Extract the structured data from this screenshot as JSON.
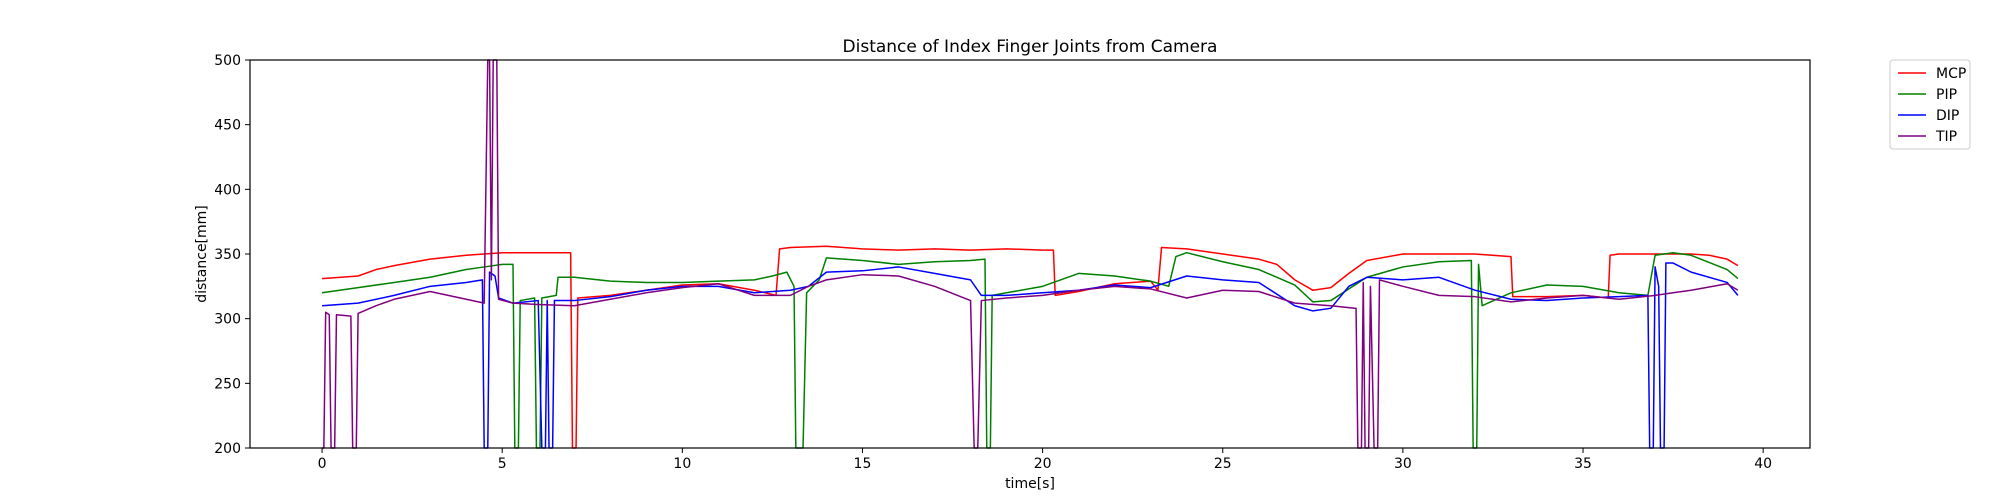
{
  "chart_data": {
    "type": "line",
    "title": "Distance of Index Finger Joints from Camera",
    "xlabel": "time[s]",
    "ylabel": "distance[mm]",
    "xlim": [
      -2,
      41.3
    ],
    "ylim": [
      200,
      500
    ],
    "xticks": [
      0,
      5,
      10,
      15,
      20,
      25,
      30,
      35,
      40
    ],
    "yticks": [
      200,
      250,
      300,
      350,
      400,
      450,
      500
    ],
    "grid": false,
    "legend_position": "outside-top-right",
    "series": [
      {
        "name": "MCP",
        "color": "#ff0000",
        "points": [
          [
            0,
            331
          ],
          [
            1,
            333
          ],
          [
            1.5,
            338
          ],
          [
            2,
            341
          ],
          [
            3,
            346
          ],
          [
            4,
            349
          ],
          [
            5,
            351
          ],
          [
            6,
            351
          ],
          [
            6.9,
            351
          ],
          [
            6.95,
            200
          ],
          [
            7.05,
            200
          ],
          [
            7.1,
            316
          ],
          [
            8,
            318
          ],
          [
            9,
            322
          ],
          [
            10,
            326
          ],
          [
            11,
            327
          ],
          [
            12,
            322
          ],
          [
            12.6,
            318
          ],
          [
            12.7,
            354
          ],
          [
            13,
            355
          ],
          [
            14,
            356
          ],
          [
            15,
            354
          ],
          [
            16,
            353
          ],
          [
            17,
            354
          ],
          [
            18,
            353
          ],
          [
            19,
            354
          ],
          [
            20,
            353
          ],
          [
            20.3,
            353
          ],
          [
            20.35,
            318
          ],
          [
            21,
            321
          ],
          [
            22,
            327
          ],
          [
            23,
            329
          ],
          [
            23.2,
            322
          ],
          [
            23.3,
            355
          ],
          [
            24,
            354
          ],
          [
            25,
            350
          ],
          [
            26,
            346
          ],
          [
            26.5,
            342
          ],
          [
            27,
            330
          ],
          [
            27.5,
            322
          ],
          [
            28,
            324
          ],
          [
            28.5,
            335
          ],
          [
            29,
            345
          ],
          [
            30,
            350
          ],
          [
            31,
            350
          ],
          [
            32,
            350
          ],
          [
            33,
            348
          ],
          [
            33.05,
            317
          ],
          [
            34,
            317
          ],
          [
            35,
            318
          ],
          [
            35.7,
            316
          ],
          [
            35.75,
            349
          ],
          [
            36,
            350
          ],
          [
            37,
            350
          ],
          [
            38,
            350
          ],
          [
            38.5,
            349
          ],
          [
            39,
            346
          ],
          [
            39.3,
            341
          ]
        ]
      },
      {
        "name": "PIP",
        "color": "#008000",
        "points": [
          [
            0,
            320
          ],
          [
            1,
            324
          ],
          [
            2,
            328
          ],
          [
            3,
            332
          ],
          [
            4,
            338
          ],
          [
            4.5,
            340
          ],
          [
            5,
            342
          ],
          [
            5.3,
            342
          ],
          [
            5.35,
            200
          ],
          [
            5.45,
            200
          ],
          [
            5.5,
            314
          ],
          [
            5.9,
            316
          ],
          [
            5.95,
            200
          ],
          [
            6.05,
            200
          ],
          [
            6.1,
            316
          ],
          [
            6.5,
            318
          ],
          [
            6.55,
            332
          ],
          [
            7,
            332
          ],
          [
            8,
            329
          ],
          [
            9,
            328
          ],
          [
            10,
            328
          ],
          [
            11,
            329
          ],
          [
            12,
            330
          ],
          [
            12.5,
            333
          ],
          [
            12.9,
            336
          ],
          [
            13.1,
            325
          ],
          [
            13.15,
            200
          ],
          [
            13.25,
            200
          ],
          [
            13.3,
            200
          ],
          [
            13.35,
            200
          ],
          [
            13.45,
            320
          ],
          [
            13.8,
            330
          ],
          [
            14,
            347
          ],
          [
            15,
            345
          ],
          [
            16,
            342
          ],
          [
            17,
            344
          ],
          [
            18,
            345
          ],
          [
            18.4,
            346
          ],
          [
            18.45,
            200
          ],
          [
            18.55,
            200
          ],
          [
            18.6,
            318
          ],
          [
            19,
            320
          ],
          [
            20,
            325
          ],
          [
            21,
            335
          ],
          [
            22,
            333
          ],
          [
            23,
            329
          ],
          [
            23.5,
            325
          ],
          [
            23.7,
            348
          ],
          [
            24,
            351
          ],
          [
            25,
            344
          ],
          [
            26,
            338
          ],
          [
            27,
            326
          ],
          [
            27.5,
            313
          ],
          [
            28,
            314
          ],
          [
            29,
            332
          ],
          [
            30,
            340
          ],
          [
            31,
            344
          ],
          [
            31.9,
            345
          ],
          [
            31.95,
            200
          ],
          [
            32.05,
            200
          ],
          [
            32.1,
            342
          ],
          [
            32.2,
            310
          ],
          [
            33,
            320
          ],
          [
            34,
            326
          ],
          [
            35,
            325
          ],
          [
            36,
            320
          ],
          [
            36.8,
            318
          ],
          [
            37,
            349
          ],
          [
            37.5,
            351
          ],
          [
            38,
            349
          ],
          [
            39,
            338
          ],
          [
            39.3,
            331
          ]
        ]
      },
      {
        "name": "DIP",
        "color": "#0000ff",
        "points": [
          [
            0,
            310
          ],
          [
            1,
            312
          ],
          [
            2,
            318
          ],
          [
            3,
            325
          ],
          [
            4,
            328
          ],
          [
            4.45,
            330
          ],
          [
            4.5,
            200
          ],
          [
            4.6,
            200
          ],
          [
            4.65,
            336
          ],
          [
            4.8,
            333
          ],
          [
            4.9,
            316
          ],
          [
            5.3,
            312
          ],
          [
            6,
            314
          ],
          [
            6.1,
            200
          ],
          [
            6.2,
            200
          ],
          [
            6.25,
            314
          ],
          [
            6.3,
            200
          ],
          [
            6.4,
            200
          ],
          [
            6.45,
            314
          ],
          [
            7,
            314
          ],
          [
            8,
            317
          ],
          [
            9,
            322
          ],
          [
            10,
            325
          ],
          [
            11,
            325
          ],
          [
            12,
            320
          ],
          [
            13,
            322
          ],
          [
            13.5,
            325
          ],
          [
            14,
            336
          ],
          [
            15,
            337
          ],
          [
            16,
            340
          ],
          [
            17,
            335
          ],
          [
            18,
            330
          ],
          [
            18.3,
            318
          ],
          [
            19,
            318
          ],
          [
            20,
            320
          ],
          [
            21,
            322
          ],
          [
            22,
            326
          ],
          [
            23,
            324
          ],
          [
            24,
            333
          ],
          [
            25,
            330
          ],
          [
            26,
            328
          ],
          [
            27,
            310
          ],
          [
            27.5,
            306
          ],
          [
            28,
            308
          ],
          [
            28.5,
            325
          ],
          [
            29,
            332
          ],
          [
            30,
            330
          ],
          [
            31,
            332
          ],
          [
            32,
            322
          ],
          [
            33,
            315
          ],
          [
            34,
            314
          ],
          [
            35,
            316
          ],
          [
            36,
            317
          ],
          [
            36.8,
            318
          ],
          [
            36.85,
            200
          ],
          [
            36.95,
            200
          ],
          [
            37,
            340
          ],
          [
            37.1,
            325
          ],
          [
            37.15,
            200
          ],
          [
            37.25,
            200
          ],
          [
            37.3,
            343
          ],
          [
            37.5,
            343
          ],
          [
            38,
            336
          ],
          [
            39,
            328
          ],
          [
            39.3,
            318
          ]
        ]
      },
      {
        "name": "TIP",
        "color": "#800080",
        "points": [
          [
            0,
            200
          ],
          [
            0.05,
            200
          ],
          [
            0.1,
            305
          ],
          [
            0.2,
            303
          ],
          [
            0.25,
            200
          ],
          [
            0.35,
            200
          ],
          [
            0.4,
            303
          ],
          [
            0.8,
            302
          ],
          [
            0.85,
            200
          ],
          [
            0.95,
            200
          ],
          [
            1,
            304
          ],
          [
            1.5,
            310
          ],
          [
            2,
            315
          ],
          [
            3,
            321
          ],
          [
            4,
            315
          ],
          [
            4.5,
            312
          ],
          [
            4.6,
            500
          ],
          [
            4.65,
            500
          ],
          [
            4.7,
            330
          ],
          [
            4.75,
            500
          ],
          [
            4.85,
            500
          ],
          [
            4.9,
            315
          ],
          [
            5.3,
            312
          ],
          [
            6,
            311
          ],
          [
            7,
            310
          ],
          [
            8,
            315
          ],
          [
            9,
            320
          ],
          [
            10,
            324
          ],
          [
            11,
            327
          ],
          [
            12,
            318
          ],
          [
            13,
            318
          ],
          [
            13.5,
            325
          ],
          [
            14,
            330
          ],
          [
            15,
            334
          ],
          [
            16,
            333
          ],
          [
            17,
            325
          ],
          [
            18,
            314
          ],
          [
            18.1,
            200
          ],
          [
            18.2,
            200
          ],
          [
            18.3,
            314
          ],
          [
            19,
            316
          ],
          [
            20,
            318
          ],
          [
            21,
            322
          ],
          [
            22,
            325
          ],
          [
            23,
            323
          ],
          [
            24,
            316
          ],
          [
            25,
            322
          ],
          [
            26,
            321
          ],
          [
            27,
            312
          ],
          [
            28,
            310
          ],
          [
            28.7,
            308
          ],
          [
            28.75,
            200
          ],
          [
            28.85,
            200
          ],
          [
            28.9,
            328
          ],
          [
            28.95,
            200
          ],
          [
            29.05,
            200
          ],
          [
            29.1,
            325
          ],
          [
            29.2,
            200
          ],
          [
            29.3,
            200
          ],
          [
            29.35,
            330
          ],
          [
            30,
            325
          ],
          [
            31,
            318
          ],
          [
            32,
            317
          ],
          [
            33,
            313
          ],
          [
            34,
            316
          ],
          [
            35,
            318
          ],
          [
            36,
            315
          ],
          [
            37,
            318
          ],
          [
            37.5,
            320
          ],
          [
            38,
            322
          ],
          [
            39,
            327
          ],
          [
            39.3,
            322
          ]
        ]
      }
    ]
  }
}
